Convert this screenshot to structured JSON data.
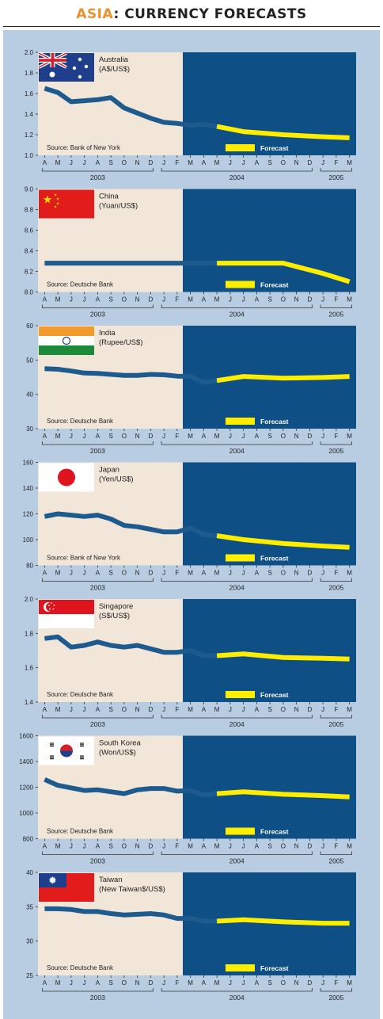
{
  "header": {
    "title_accent": "ASIA",
    "title_rest": ": CURRENCY FORECASTS"
  },
  "colors": {
    "background": "#b9cde2",
    "historical_bg": "#f2e6d9",
    "forecast_bg": "#0e4f86",
    "historical_line": "#1d5a8e",
    "forecast_line": "#ffed00",
    "accent": "#e8932c"
  },
  "shared": {
    "month_labels": [
      "A",
      "M",
      "J",
      "J",
      "A",
      "S",
      "O",
      "N",
      "D",
      "J",
      "F",
      "M",
      "A",
      "M",
      "J",
      "J",
      "A",
      "S",
      "O",
      "N",
      "D",
      "J",
      "F",
      "M"
    ],
    "year_labels": [
      "2003",
      "2004",
      "2005"
    ],
    "forecast_label": "Forecast"
  },
  "chart_data": [
    {
      "type": "line",
      "country": "Australia",
      "title": "Australia",
      "unit": "(A$/US$)",
      "source": "Source: Bank of New York",
      "flag": "australia-flag",
      "ylim": [
        1.0,
        2.0
      ],
      "yticks": [
        "2.0",
        "1.8",
        "1.6",
        "1.4",
        "1.2",
        "1.0"
      ],
      "series": [
        {
          "type": "historical",
          "x": [
            0,
            1,
            2,
            3,
            4,
            5,
            6,
            7,
            8,
            9,
            10,
            11,
            12,
            13
          ],
          "values": [
            1.65,
            1.61,
            1.52,
            1.53,
            1.54,
            1.56,
            1.46,
            1.41,
            1.36,
            1.32,
            1.31,
            1.29,
            1.3,
            1.28
          ]
        },
        {
          "type": "forecast",
          "x": [
            13,
            15,
            18,
            21,
            23
          ],
          "values": [
            1.28,
            1.23,
            1.2,
            1.18,
            1.17
          ]
        }
      ]
    },
    {
      "type": "line",
      "country": "China",
      "title": "China",
      "unit": "(Yuan/US$)",
      "source": "Source: Deutsche Bank",
      "flag": "china-flag",
      "ylim": [
        8.0,
        9.0
      ],
      "yticks": [
        "9.0",
        "8.8",
        "8.6",
        "8.4",
        "8.2",
        "8.0"
      ],
      "series": [
        {
          "type": "historical",
          "x": [
            0,
            1,
            2,
            3,
            4,
            5,
            6,
            7,
            8,
            9,
            10,
            11,
            12,
            13
          ],
          "values": [
            8.28,
            8.28,
            8.28,
            8.28,
            8.28,
            8.28,
            8.28,
            8.28,
            8.28,
            8.28,
            8.28,
            8.28,
            8.28,
            8.28
          ]
        },
        {
          "type": "forecast",
          "x": [
            13,
            15,
            18,
            21,
            23
          ],
          "values": [
            8.28,
            8.28,
            8.28,
            8.18,
            8.1
          ]
        }
      ]
    },
    {
      "type": "line",
      "country": "India",
      "title": "India",
      "unit": "(Rupee/US$)",
      "source": "Source: Deutsche Bank",
      "flag": "india-flag",
      "ylim": [
        30,
        60
      ],
      "yticks": [
        "60",
        "50",
        "40",
        "30"
      ],
      "series": [
        {
          "type": "historical",
          "x": [
            0,
            1,
            2,
            3,
            4,
            5,
            6,
            7,
            8,
            9,
            10,
            11,
            12,
            13
          ],
          "values": [
            47.5,
            47.3,
            46.8,
            46.2,
            46.1,
            45.8,
            45.5,
            45.5,
            45.8,
            45.7,
            45.3,
            45.2,
            43.5,
            44.0
          ]
        },
        {
          "type": "forecast",
          "x": [
            13,
            15,
            18,
            21,
            23
          ],
          "values": [
            44.0,
            45.2,
            44.7,
            44.9,
            45.2
          ]
        }
      ]
    },
    {
      "type": "line",
      "country": "Japan",
      "title": "Japan",
      "unit": "(Yen/US$)",
      "source": "Source: Bank of New York",
      "flag": "japan-flag",
      "ylim": [
        80,
        160
      ],
      "yticks": [
        "160",
        "140",
        "120",
        "100",
        "80"
      ],
      "series": [
        {
          "type": "historical",
          "x": [
            0,
            1,
            2,
            3,
            4,
            5,
            6,
            7,
            8,
            9,
            10,
            11,
            12,
            13
          ],
          "values": [
            118,
            120,
            119,
            118,
            119,
            116,
            111,
            110,
            108,
            106,
            106,
            109,
            104,
            103
          ]
        },
        {
          "type": "forecast",
          "x": [
            13,
            15,
            18,
            21,
            23
          ],
          "values": [
            103,
            100,
            97,
            95,
            94
          ]
        }
      ]
    },
    {
      "type": "line",
      "country": "Singapore",
      "title": "Singapore",
      "unit": "(S$/US$)",
      "source": "Source: Deutsche Bank",
      "flag": "singapore-flag",
      "ylim": [
        1.4,
        2.0
      ],
      "yticks": [
        "2.0",
        "1.8",
        "1.6",
        "1.4"
      ],
      "series": [
        {
          "type": "historical",
          "x": [
            0,
            1,
            2,
            3,
            4,
            5,
            6,
            7,
            8,
            9,
            10,
            11,
            12,
            13
          ],
          "values": [
            1.77,
            1.78,
            1.72,
            1.73,
            1.75,
            1.73,
            1.72,
            1.73,
            1.71,
            1.69,
            1.69,
            1.7,
            1.67,
            1.67
          ]
        },
        {
          "type": "forecast",
          "x": [
            13,
            15,
            18,
            21,
            23
          ],
          "values": [
            1.67,
            1.68,
            1.66,
            1.655,
            1.65
          ]
        }
      ]
    },
    {
      "type": "line",
      "country": "South Korea",
      "title": "South Korea",
      "unit": "(Won/US$)",
      "source": "Source: Deutsche Bank",
      "flag": "south-korea-flag",
      "ylim": [
        800,
        1600
      ],
      "yticks": [
        "1600",
        "1400",
        "1200",
        "1000",
        "800"
      ],
      "series": [
        {
          "type": "historical",
          "x": [
            0,
            1,
            2,
            3,
            4,
            5,
            6,
            7,
            8,
            9,
            10,
            11,
            12,
            13
          ],
          "values": [
            1260,
            1215,
            1195,
            1175,
            1180,
            1165,
            1150,
            1180,
            1190,
            1190,
            1170,
            1175,
            1140,
            1150
          ]
        },
        {
          "type": "forecast",
          "x": [
            13,
            15,
            18,
            21,
            23
          ],
          "values": [
            1150,
            1165,
            1145,
            1135,
            1125
          ]
        }
      ]
    },
    {
      "type": "line",
      "country": "Taiwan",
      "title": "Taiwan",
      "unit": "(New Taiwan$/US$)",
      "source": "Source: Deutsche Bank",
      "flag": "taiwan-flag",
      "ylim": [
        25,
        40
      ],
      "yticks": [
        "40",
        "35",
        "30",
        "25"
      ],
      "series": [
        {
          "type": "historical",
          "x": [
            0,
            1,
            2,
            3,
            4,
            5,
            6,
            7,
            8,
            9,
            10,
            11,
            12,
            13
          ],
          "values": [
            34.7,
            34.7,
            34.6,
            34.3,
            34.3,
            34.0,
            33.8,
            33.9,
            34.0,
            33.8,
            33.3,
            33.3,
            32.9,
            32.9
          ]
        },
        {
          "type": "forecast",
          "x": [
            13,
            15,
            18,
            21,
            23
          ],
          "values": [
            32.9,
            33.1,
            32.8,
            32.6,
            32.6
          ]
        }
      ]
    }
  ]
}
